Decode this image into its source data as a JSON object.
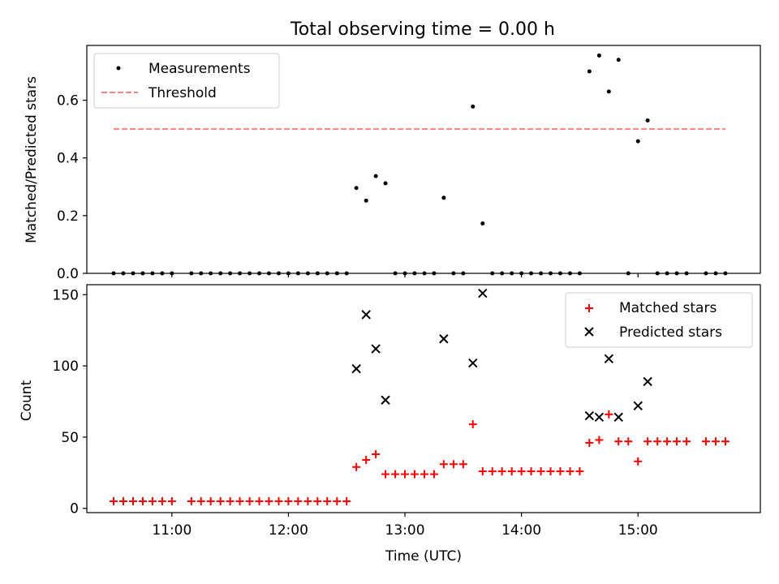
{
  "chart_data": [
    {
      "type": "scatter",
      "title": "Total observing time = 0.00 h",
      "ylabel": "Matched/Predicted stars",
      "xlabel": "",
      "ylim": [
        0,
        0.79
      ],
      "yticks": [
        0.0,
        0.2,
        0.4,
        0.6
      ],
      "ytick_labels": [
        "0.0",
        "0.2",
        "0.4",
        "0.6"
      ],
      "xlim": [
        10.27,
        16.05
      ],
      "xticks": [
        11,
        12,
        13,
        14,
        15
      ],
      "legend": {
        "position": "top-left",
        "entries": [
          "Measurements",
          "Threshold"
        ]
      },
      "threshold": {
        "value": 0.5,
        "x_range": [
          10.5,
          15.75
        ],
        "color": "#ff8080"
      },
      "series": [
        {
          "name": "Measurements",
          "color": "#000000",
          "x": [
            10.5,
            10.583,
            10.667,
            10.75,
            10.833,
            10.917,
            11.0,
            11.167,
            11.25,
            11.333,
            11.417,
            11.5,
            11.583,
            11.667,
            11.75,
            11.833,
            11.917,
            12.0,
            12.083,
            12.167,
            12.25,
            12.333,
            12.417,
            12.5,
            12.583,
            12.667,
            12.75,
            12.833,
            12.917,
            13.0,
            13.083,
            13.167,
            13.25,
            13.333,
            13.417,
            13.5,
            13.583,
            13.667,
            13.75,
            13.833,
            13.917,
            14.0,
            14.083,
            14.167,
            14.25,
            14.333,
            14.417,
            14.5,
            14.583,
            14.667,
            14.75,
            14.833,
            14.917,
            15.0,
            15.083,
            15.167,
            15.25,
            15.333,
            15.417,
            15.583,
            15.667,
            15.75
          ],
          "y": [
            0,
            0,
            0,
            0,
            0,
            0,
            0,
            0,
            0,
            0,
            0,
            0,
            0,
            0,
            0,
            0,
            0,
            0,
            0,
            0,
            0,
            0,
            0,
            0,
            0.296,
            0.252,
            0.337,
            0.312,
            0,
            0,
            0,
            0,
            0,
            0.262,
            0,
            0,
            0.578,
            0.173,
            0,
            0,
            0,
            0,
            0,
            0,
            0,
            0,
            0,
            0,
            0.7,
            0.755,
            0.63,
            0.74,
            0,
            0.458,
            0.53,
            0,
            0,
            0,
            0,
            0,
            0,
            0
          ]
        }
      ]
    },
    {
      "type": "scatter",
      "title": "",
      "ylabel": "Count",
      "xlabel": "Time (UTC)",
      "ylim": [
        -3,
        157
      ],
      "yticks": [
        0,
        50,
        100,
        150
      ],
      "ytick_labels": [
        "0",
        "50",
        "100",
        "150"
      ],
      "xlim": [
        10.27,
        16.05
      ],
      "xticks": [
        11,
        12,
        13,
        14,
        15
      ],
      "xtick_labels": [
        "11:00",
        "12:00",
        "13:00",
        "14:00",
        "15:00"
      ],
      "legend": {
        "position": "top-right",
        "entries": [
          "Matched stars",
          "Predicted stars"
        ]
      },
      "series": [
        {
          "name": "Matched stars",
          "color": "#ff0000",
          "marker": "+",
          "x": [
            10.5,
            10.583,
            10.667,
            10.75,
            10.833,
            10.917,
            11.0,
            11.167,
            11.25,
            11.333,
            11.417,
            11.5,
            11.583,
            11.667,
            11.75,
            11.833,
            11.917,
            12.0,
            12.083,
            12.167,
            12.25,
            12.333,
            12.417,
            12.5,
            12.583,
            12.667,
            12.75,
            12.833,
            12.917,
            13.0,
            13.083,
            13.167,
            13.25,
            13.333,
            13.417,
            13.5,
            13.583,
            13.667,
            13.75,
            13.833,
            13.917,
            14.0,
            14.083,
            14.167,
            14.25,
            14.333,
            14.417,
            14.5,
            14.583,
            14.667,
            14.75,
            14.833,
            14.917,
            15.0,
            15.083,
            15.167,
            15.25,
            15.333,
            15.417,
            15.583,
            15.667,
            15.75
          ],
          "y": [
            5,
            5,
            5,
            5,
            5,
            5,
            5,
            5,
            5,
            5,
            5,
            5,
            5,
            5,
            5,
            5,
            5,
            5,
            5,
            5,
            5,
            5,
            5,
            5,
            29,
            34,
            38,
            24,
            24,
            24,
            24,
            24,
            24,
            31,
            31,
            31,
            59,
            26,
            26,
            26,
            26,
            26,
            26,
            26,
            26,
            26,
            26,
            26,
            46,
            48,
            66,
            47,
            47,
            33,
            47,
            47,
            47,
            47,
            47,
            47,
            47,
            47
          ]
        },
        {
          "name": "Predicted stars",
          "color": "#000000",
          "marker": "x",
          "x": [
            12.583,
            12.667,
            12.75,
            12.833,
            13.333,
            13.583,
            13.667,
            14.583,
            14.667,
            14.75,
            14.833,
            15.0,
            15.083
          ],
          "y": [
            98,
            136,
            112,
            76,
            119,
            102,
            151,
            65,
            64,
            105,
            64,
            72,
            89
          ]
        }
      ]
    }
  ]
}
